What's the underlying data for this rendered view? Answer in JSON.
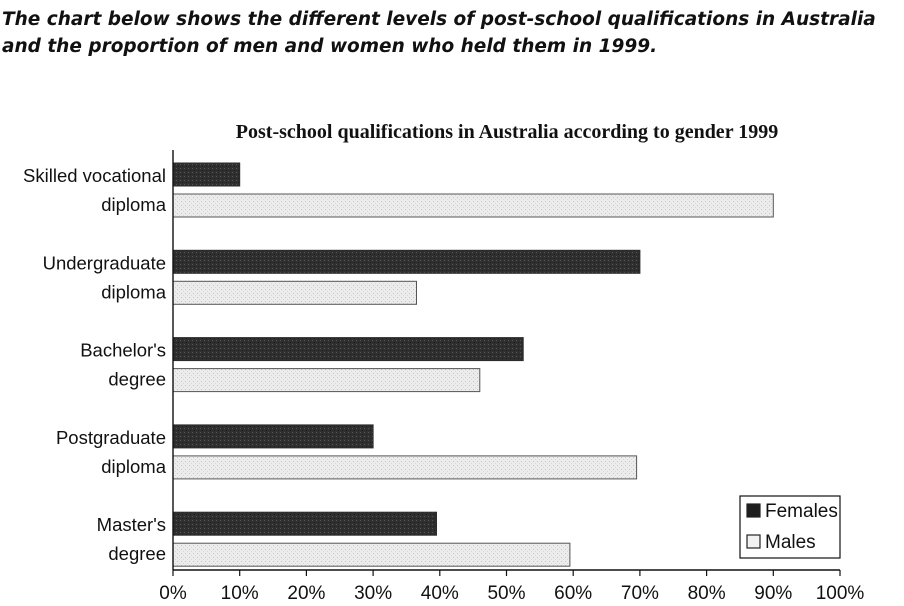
{
  "intro_text": "The chart below shows the different levels of post-school qualifications in Australia and the proportion of men and women who held them in 1999.",
  "colors": {
    "females": "#2b2b2b",
    "males": "#eaeaea",
    "axis": "#111111"
  },
  "chart_data": {
    "type": "bar",
    "orientation": "horizontal",
    "title": "Post-school qualifications in Australia according to gender 1999",
    "categories": [
      [
        "Skilled vocational",
        "diploma"
      ],
      [
        "Undergraduate",
        "diploma"
      ],
      [
        "Bachelor's",
        "degree"
      ],
      [
        "Postgraduate",
        "diploma"
      ],
      [
        "Master's",
        "degree"
      ]
    ],
    "series": [
      {
        "name": "Females",
        "values": [
          10,
          70,
          52.5,
          30,
          39.5
        ]
      },
      {
        "name": "Males",
        "values": [
          90,
          36.5,
          46,
          69.5,
          59.5
        ]
      }
    ],
    "xlim": [
      0,
      100
    ],
    "xticks": [
      "0%",
      "10%",
      "20%",
      "30%",
      "40%",
      "50%",
      "60%",
      "70%",
      "80%",
      "90%",
      "100%"
    ],
    "legend_position": "bottom-right",
    "grid": false
  }
}
